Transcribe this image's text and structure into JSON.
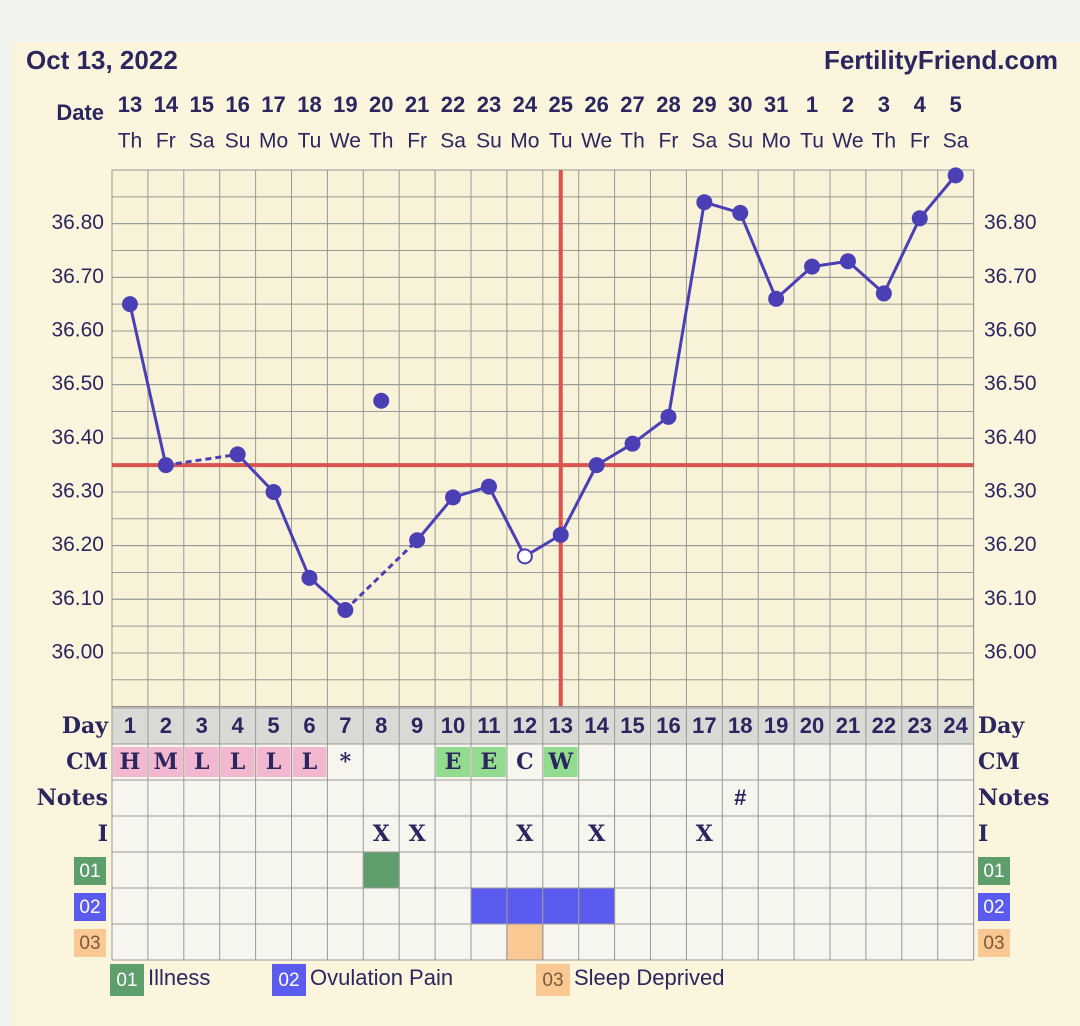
{
  "chart_data": {
    "type": "line",
    "title": "Oct 13, 2022",
    "site": "FertilityFriend.com",
    "date_label": "Date",
    "dates": [
      "13",
      "14",
      "15",
      "16",
      "17",
      "18",
      "19",
      "20",
      "21",
      "22",
      "23",
      "24",
      "25",
      "26",
      "27",
      "28",
      "29",
      "30",
      "31",
      "1",
      "2",
      "3",
      "4",
      "5"
    ],
    "weekdays": [
      "Th",
      "Fr",
      "Sa",
      "Su",
      "Mo",
      "Tu",
      "We",
      "Th",
      "Fr",
      "Sa",
      "Su",
      "Mo",
      "Tu",
      "We",
      "Th",
      "Fr",
      "Sa",
      "Su",
      "Mo",
      "Tu",
      "We",
      "Th",
      "Fr",
      "Sa"
    ],
    "ylim": [
      35.9,
      36.9
    ],
    "yticks": [
      {
        "value": 36.0,
        "label": "36.00"
      },
      {
        "value": 36.1,
        "label": "36.10"
      },
      {
        "value": 36.2,
        "label": "36.20"
      },
      {
        "value": 36.3,
        "label": "36.30"
      },
      {
        "value": 36.4,
        "label": "36.40"
      },
      {
        "value": 36.5,
        "label": "36.50"
      },
      {
        "value": 36.6,
        "label": "36.60"
      },
      {
        "value": 36.7,
        "label": "36.70"
      },
      {
        "value": 36.8,
        "label": "36.80"
      }
    ],
    "grid": true,
    "color": "#4b3fb5",
    "values": [
      36.65,
      36.35,
      null,
      36.37,
      36.3,
      36.14,
      36.08,
      36.47,
      36.21,
      36.29,
      36.31,
      36.18,
      36.22,
      36.35,
      36.39,
      36.44,
      36.84,
      36.82,
      36.66,
      36.72,
      36.73,
      36.67,
      36.81,
      36.89
    ],
    "excluded_days": [
      8
    ],
    "hollow_days": [
      12
    ],
    "coverline": 36.35,
    "ovulation_day": 13,
    "marker_color": "#d9534f",
    "day_label": "Day",
    "cycle_days": [
      1,
      2,
      3,
      4,
      5,
      6,
      7,
      8,
      9,
      10,
      11,
      12,
      13,
      14,
      15,
      16,
      17,
      18,
      19,
      20,
      21,
      22,
      23,
      24
    ],
    "cm": {
      "label": "CM",
      "cells": [
        "H",
        "M",
        "L",
        "L",
        "L",
        "L",
        "*",
        null,
        null,
        "E",
        "E",
        "C",
        "W",
        null,
        null,
        null,
        null,
        null,
        null,
        null,
        null,
        null,
        null,
        null
      ],
      "fills": [
        "#f2b8cf",
        "#f2b8cf",
        "#f2b8cf",
        "#f2b8cf",
        "#f2b8cf",
        "#f2b8cf",
        null,
        null,
        null,
        "#93dc8f",
        "#93dc8f",
        null,
        "#93dc8f",
        null,
        null,
        null,
        null,
        null,
        null,
        null,
        null,
        null,
        null,
        null
      ]
    },
    "notes": {
      "label": "Notes",
      "cells": [
        null,
        null,
        null,
        null,
        null,
        null,
        null,
        null,
        null,
        null,
        null,
        null,
        null,
        null,
        null,
        null,
        null,
        "#",
        null,
        null,
        null,
        null,
        null,
        null
      ]
    },
    "intercourse": {
      "label": "I",
      "cells": [
        null,
        null,
        null,
        null,
        null,
        null,
        null,
        "X",
        "X",
        null,
        null,
        "X",
        null,
        "X",
        null,
        null,
        "X",
        null,
        null,
        null,
        null,
        null,
        null,
        null
      ]
    },
    "symptoms": [
      {
        "code": "01",
        "name": "Illness",
        "color": "#5e9e6c",
        "days": [
          8
        ]
      },
      {
        "code": "02",
        "name": "Ovulation Pain",
        "color": "#5b5bf0",
        "days": [
          11,
          12,
          13,
          14
        ]
      },
      {
        "code": "03",
        "name": "Sleep Deprived",
        "color": "#f9c893",
        "days": [
          12
        ]
      }
    ]
  }
}
